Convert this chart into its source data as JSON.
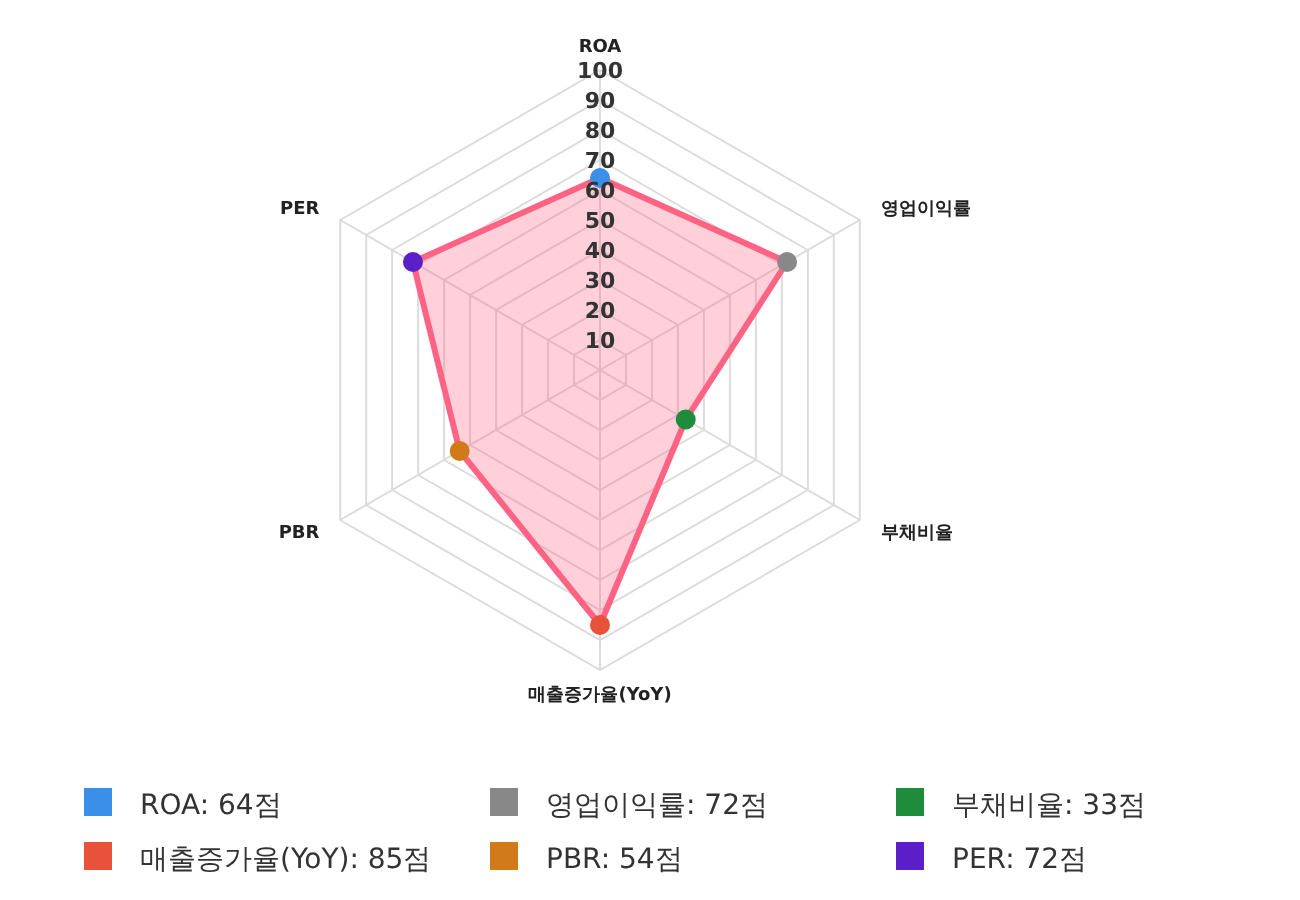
{
  "chart_data": {
    "type": "radar",
    "categories": [
      "ROA",
      "영업이익률",
      "부채비율",
      "매출증가율(YoY)",
      "PBR",
      "PER"
    ],
    "series": [
      {
        "color": "#ff6384",
        "values": [
          64,
          72,
          33,
          85,
          54,
          72
        ],
        "colors": [
          "#3b8fe8",
          "#888888",
          "#1e8c3a",
          "#e8513a",
          "#d07a1a",
          "#5a1fc8"
        ]
      }
    ],
    "annotations": [
      "ROA: 64점",
      "영업이익률: 72점",
      "부채비율: 33점",
      "매출증가율(YoY): 85점",
      "PBR: 54점",
      "PER: 72점"
    ],
    "ylim": [
      0,
      100
    ],
    "yticks": [
      10,
      20,
      30,
      40,
      50,
      60,
      70,
      80,
      90,
      100
    ],
    "grid": true,
    "marker": "circle"
  }
}
